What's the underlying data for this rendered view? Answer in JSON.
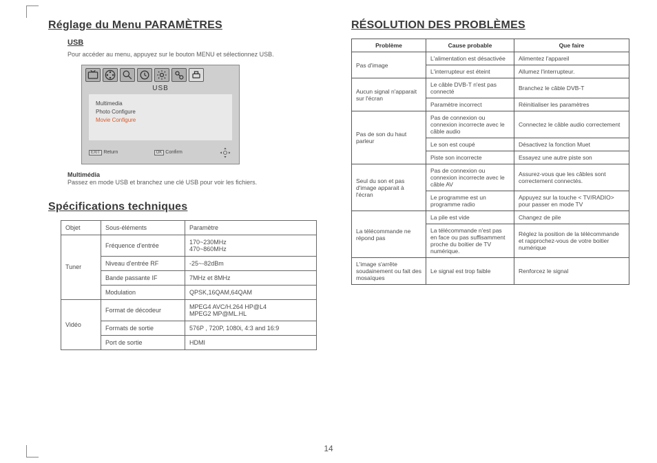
{
  "left": {
    "h1_params": "Réglage du Menu PARAMÈTRES",
    "usb_heading": "USB",
    "usb_intro": "Pour accéder au menu, appuyez sur le bouton MENU et sélectionnez USB.",
    "osd": {
      "title": "USB",
      "items": [
        "Multimedia",
        "Photo Configure",
        "Movie Configure"
      ],
      "highlight_index": 2,
      "foot_exit": "EXIT",
      "foot_return": "Return",
      "foot_ok": "OK",
      "foot_confirm": "Confirm"
    },
    "multimedia_label": "Multimédia",
    "multimedia_text": "Passez en mode USB et branchez une clé USB pour voir les fichiers.",
    "h1_spec": "Spécifications techniques",
    "spec_headers": {
      "obj": "Objet",
      "sub": "Sous-éléments",
      "param": "Paramètre"
    },
    "spec_rows": [
      {
        "obj": "Tuner",
        "rows": [
          {
            "sub": "Fréquence d'entrée",
            "param": "170~230MHz\n470~860MHz"
          },
          {
            "sub": "Niveau d'entrée RF",
            "param": "-25~-82dBm"
          },
          {
            "sub": "Bande passante IF",
            "param": "7MHz et 8MHz"
          },
          {
            "sub": "Modulation",
            "param": "QPSK,16QAM,64QAM"
          }
        ]
      },
      {
        "obj": "Vidéo",
        "rows": [
          {
            "sub": "Format de décodeur",
            "param": "MPEG4 AVC/H.264 HP@L4\nMPEG2 MP@ML.HL"
          },
          {
            "sub": "Formats de sortie",
            "param": "576P , 720P, 1080i, 4:3 and 16:9"
          },
          {
            "sub": "Port de sortie",
            "param": "HDMI"
          }
        ]
      }
    ]
  },
  "right": {
    "h1_trouble": "RÉSOLUTION DES PROBLÈMES",
    "headers": {
      "prob": "Problème",
      "cause": "Cause probable",
      "fix": "Que faire"
    },
    "groups": [
      {
        "prob": "Pas d'image",
        "rows": [
          {
            "cause": "L'alimentation est désactivée",
            "fix": "Alimentez l'appareil"
          },
          {
            "cause": "L'interrupteur est éteint",
            "fix": "Allumez l'interrupteur."
          }
        ]
      },
      {
        "prob": "Aucun signal n'apparait sur l'écran",
        "rows": [
          {
            "cause": "Le câble DVB-T n'est pas connecté",
            "fix": "Branchez le câble DVB-T"
          },
          {
            "cause": "Paramètre incorrect",
            "fix": "Réinitialiser les paramètres"
          }
        ]
      },
      {
        "prob": "Pas de son du haut parleur",
        "rows": [
          {
            "cause": "Pas de connexion ou connexion incorrecte avec le câble audio",
            "fix": "Connectez le câble audio correctement"
          },
          {
            "cause": "Le son est coupé",
            "fix": "Désactivez la fonction Muet"
          },
          {
            "cause": "Piste son incorrecte",
            "fix": "Essayez une autre piste son"
          }
        ]
      },
      {
        "prob": "Seul du son et pas d'image apparait à l'écran",
        "rows": [
          {
            "cause": "Pas de connexion ou connexion incorrecte avec le câble AV",
            "fix": "Assurez-vous que les câbles sont correctement connectés."
          },
          {
            "cause": "Le programme est un programme radio",
            "fix": "Appuyez sur la touche < TV/RADIO> pour passer en mode TV"
          }
        ]
      },
      {
        "prob": "La télécommande ne répond pas",
        "rows": [
          {
            "cause": "La pile est vide",
            "fix": "Changez de pile"
          },
          {
            "cause": "La télécommande n'est pas en face ou pas suffisamment proche du boitier de TV numérique.",
            "fix": "Réglez la position de la télécommande et rapprochez-vous de votre boitier numérique"
          }
        ]
      },
      {
        "prob": "L'image s'arrête soudainement ou fait des mosaïques",
        "rows": [
          {
            "cause": "Le signal est trop faible",
            "fix": "Renforcez le signal"
          }
        ]
      }
    ]
  },
  "page_number": "14"
}
